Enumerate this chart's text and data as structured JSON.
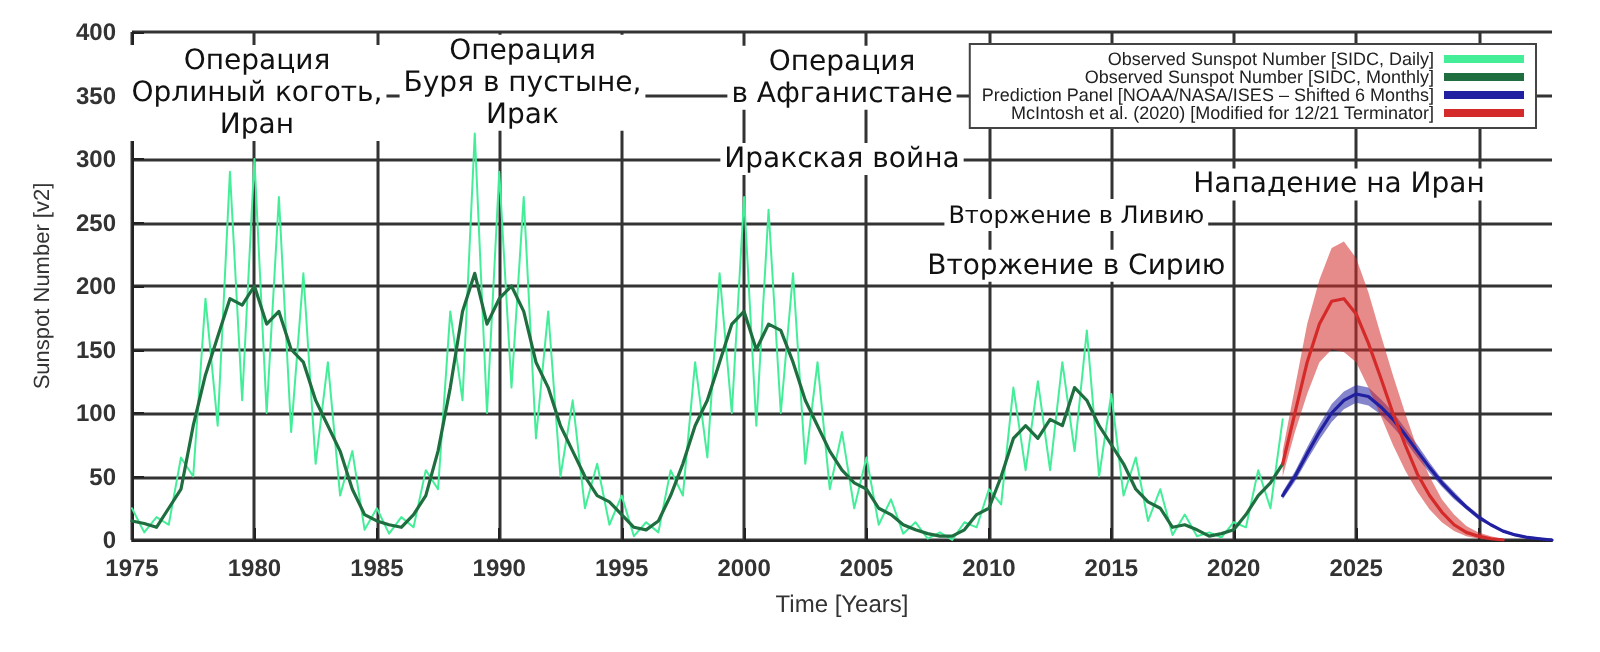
{
  "chart_data": {
    "type": "line",
    "xlabel": "Time [Years]",
    "ylabel": "Sunspot Number [v2]",
    "xlim": [
      1975,
      2033
    ],
    "xticks": [
      1975,
      1980,
      1985,
      1990,
      1995,
      2000,
      2005,
      2010,
      2015,
      2020,
      2025,
      2030
    ],
    "ylim": [
      0,
      400
    ],
    "yticks": [
      0,
      50,
      100,
      150,
      200,
      250,
      300,
      350,
      400
    ],
    "grid": true,
    "legend": "top right",
    "marker": "none",
    "line_style": "solid",
    "annotations": [
      "Операция\nОрлиный коготь,\nИран",
      "Операция\nБуря в пустыне,\nИрак",
      "Операция\nв Афганистане",
      "Иракская война",
      "Вторжение в Ливию",
      "Вторжение в Сирию",
      "Нападение на Иран"
    ],
    "series": [
      {
        "name": "Observed Sunspot Number [SIDC, Daily]",
        "color": "#44ee99",
        "x": [
          1975,
          1975.5,
          1976,
          1976.5,
          1977,
          1977.5,
          1978,
          1978.5,
          1979,
          1979.5,
          1980,
          1980.5,
          1981,
          1981.5,
          1982,
          1982.5,
          1983,
          1983.5,
          1984,
          1984.5,
          1985,
          1985.5,
          1986,
          1986.5,
          1987,
          1987.5,
          1988,
          1988.5,
          1989,
          1989.5,
          1990,
          1990.5,
          1991,
          1991.5,
          1992,
          1992.5,
          1993,
          1993.5,
          1994,
          1994.5,
          1995,
          1995.5,
          1996,
          1996.5,
          1997,
          1997.5,
          1998,
          1998.5,
          1999,
          1999.5,
          2000,
          2000.5,
          2001,
          2001.5,
          2002,
          2002.5,
          2003,
          2003.5,
          2004,
          2004.5,
          2005,
          2005.5,
          2006,
          2006.5,
          2007,
          2007.5,
          2008,
          2008.5,
          2009,
          2009.5,
          2010,
          2010.5,
          2011,
          2011.5,
          2012,
          2012.5,
          2013,
          2013.5,
          2014,
          2014.5,
          2015,
          2015.5,
          2016,
          2016.5,
          2017,
          2017.5,
          2018,
          2018.5,
          2019,
          2019.5,
          2020,
          2020.5,
          2021,
          2021.5,
          2022
        ],
        "values": [
          25,
          6,
          18,
          12,
          65,
          50,
          190,
          90,
          290,
          110,
          300,
          100,
          270,
          85,
          210,
          60,
          140,
          35,
          70,
          8,
          25,
          5,
          18,
          10,
          55,
          40,
          180,
          110,
          320,
          100,
          290,
          120,
          270,
          80,
          180,
          50,
          110,
          25,
          60,
          12,
          35,
          3,
          14,
          6,
          55,
          35,
          140,
          65,
          210,
          100,
          270,
          90,
          260,
          100,
          210,
          60,
          140,
          40,
          85,
          25,
          65,
          12,
          32,
          5,
          14,
          1,
          6,
          0,
          14,
          10,
          40,
          28,
          120,
          55,
          125,
          55,
          140,
          70,
          165,
          50,
          115,
          35,
          65,
          15,
          40,
          4,
          20,
          3,
          6,
          2,
          14,
          10,
          55,
          25,
          95
        ]
      },
      {
        "name": "Observed Sunspot Number [SIDC, Monthly]",
        "color": "#1f6e40",
        "x": [
          1975,
          1975.5,
          1976,
          1976.5,
          1977,
          1977.5,
          1978,
          1978.5,
          1979,
          1979.5,
          1980,
          1980.5,
          1981,
          1981.5,
          1982,
          1982.5,
          1983,
          1983.5,
          1984,
          1984.5,
          1985,
          1985.5,
          1986,
          1986.5,
          1987,
          1987.5,
          1988,
          1988.5,
          1989,
          1989.5,
          1990,
          1990.5,
          1991,
          1991.5,
          1992,
          1992.5,
          1993,
          1993.5,
          1994,
          1994.5,
          1995,
          1995.5,
          1996,
          1996.5,
          1997,
          1997.5,
          1998,
          1998.5,
          1999,
          1999.5,
          2000,
          2000.5,
          2001,
          2001.5,
          2002,
          2002.5,
          2003,
          2003.5,
          2004,
          2004.5,
          2005,
          2005.5,
          2006,
          2006.5,
          2007,
          2007.5,
          2008,
          2008.5,
          2009,
          2009.5,
          2010,
          2010.5,
          2011,
          2011.5,
          2012,
          2012.5,
          2013,
          2013.5,
          2014,
          2014.5,
          2015,
          2015.5,
          2016,
          2016.5,
          2017,
          2017.5,
          2018,
          2018.5,
          2019,
          2019.5,
          2020,
          2020.5,
          2021,
          2021.5,
          2022
        ],
        "values": [
          15,
          13,
          10,
          25,
          40,
          90,
          130,
          160,
          190,
          185,
          200,
          170,
          180,
          150,
          140,
          110,
          90,
          70,
          40,
          20,
          15,
          12,
          10,
          20,
          35,
          70,
          120,
          180,
          210,
          170,
          190,
          200,
          180,
          140,
          120,
          90,
          70,
          50,
          35,
          30,
          20,
          10,
          8,
          15,
          35,
          60,
          90,
          110,
          140,
          170,
          180,
          150,
          170,
          165,
          140,
          110,
          90,
          70,
          55,
          45,
          40,
          25,
          20,
          12,
          8,
          5,
          3,
          3,
          8,
          20,
          25,
          50,
          80,
          90,
          80,
          95,
          90,
          120,
          110,
          90,
          75,
          60,
          40,
          30,
          25,
          10,
          12,
          8,
          3,
          5,
          8,
          20,
          35,
          45,
          60
        ]
      },
      {
        "name": "Prediction Panel [NOAA/NASA/ISES – Shifted 6 Months]",
        "color": "#2020a0",
        "x": [
          2022,
          2022.5,
          2023,
          2023.5,
          2024,
          2024.5,
          2025,
          2025.5,
          2026,
          2026.5,
          2027,
          2027.5,
          2028,
          2028.5,
          2029,
          2029.5,
          2030,
          2030.5,
          2031,
          2031.5,
          2032,
          2032.5,
          2033
        ],
        "values": [
          35,
          50,
          68,
          85,
          100,
          110,
          115,
          113,
          105,
          95,
          83,
          70,
          57,
          45,
          35,
          26,
          18,
          12,
          7,
          4,
          2,
          1,
          0
        ],
        "lower": [
          32,
          46,
          63,
          79,
          93,
          103,
          108,
          106,
          99,
          89,
          78,
          65,
          53,
          42,
          32,
          24,
          16,
          11,
          6,
          3,
          1,
          0,
          0
        ],
        "upper": [
          38,
          54,
          73,
          91,
          107,
          117,
          122,
          120,
          111,
          101,
          88,
          75,
          61,
          48,
          38,
          28,
          20,
          13,
          8,
          5,
          3,
          2,
          0
        ]
      },
      {
        "name": "McIntosh et al. (2020) [Modified for 12/21 Terminator]",
        "color": "#d42a2a",
        "x": [
          2022,
          2022.5,
          2023,
          2023.5,
          2024,
          2024.5,
          2025,
          2025.5,
          2026,
          2026.5,
          2027,
          2027.5,
          2028,
          2028.5,
          2029,
          2029.5,
          2030,
          2030.5,
          2031
        ],
        "values": [
          60,
          100,
          140,
          170,
          188,
          190,
          178,
          155,
          128,
          100,
          75,
          52,
          35,
          22,
          12,
          6,
          3,
          1,
          0
        ],
        "lower": [
          50,
          85,
          115,
          140,
          150,
          148,
          140,
          120,
          98,
          75,
          55,
          38,
          24,
          14,
          7,
          3,
          1,
          0,
          0
        ],
        "upper": [
          70,
          120,
          170,
          205,
          230,
          235,
          222,
          195,
          162,
          130,
          100,
          72,
          50,
          32,
          20,
          11,
          6,
          3,
          1
        ]
      }
    ]
  }
}
